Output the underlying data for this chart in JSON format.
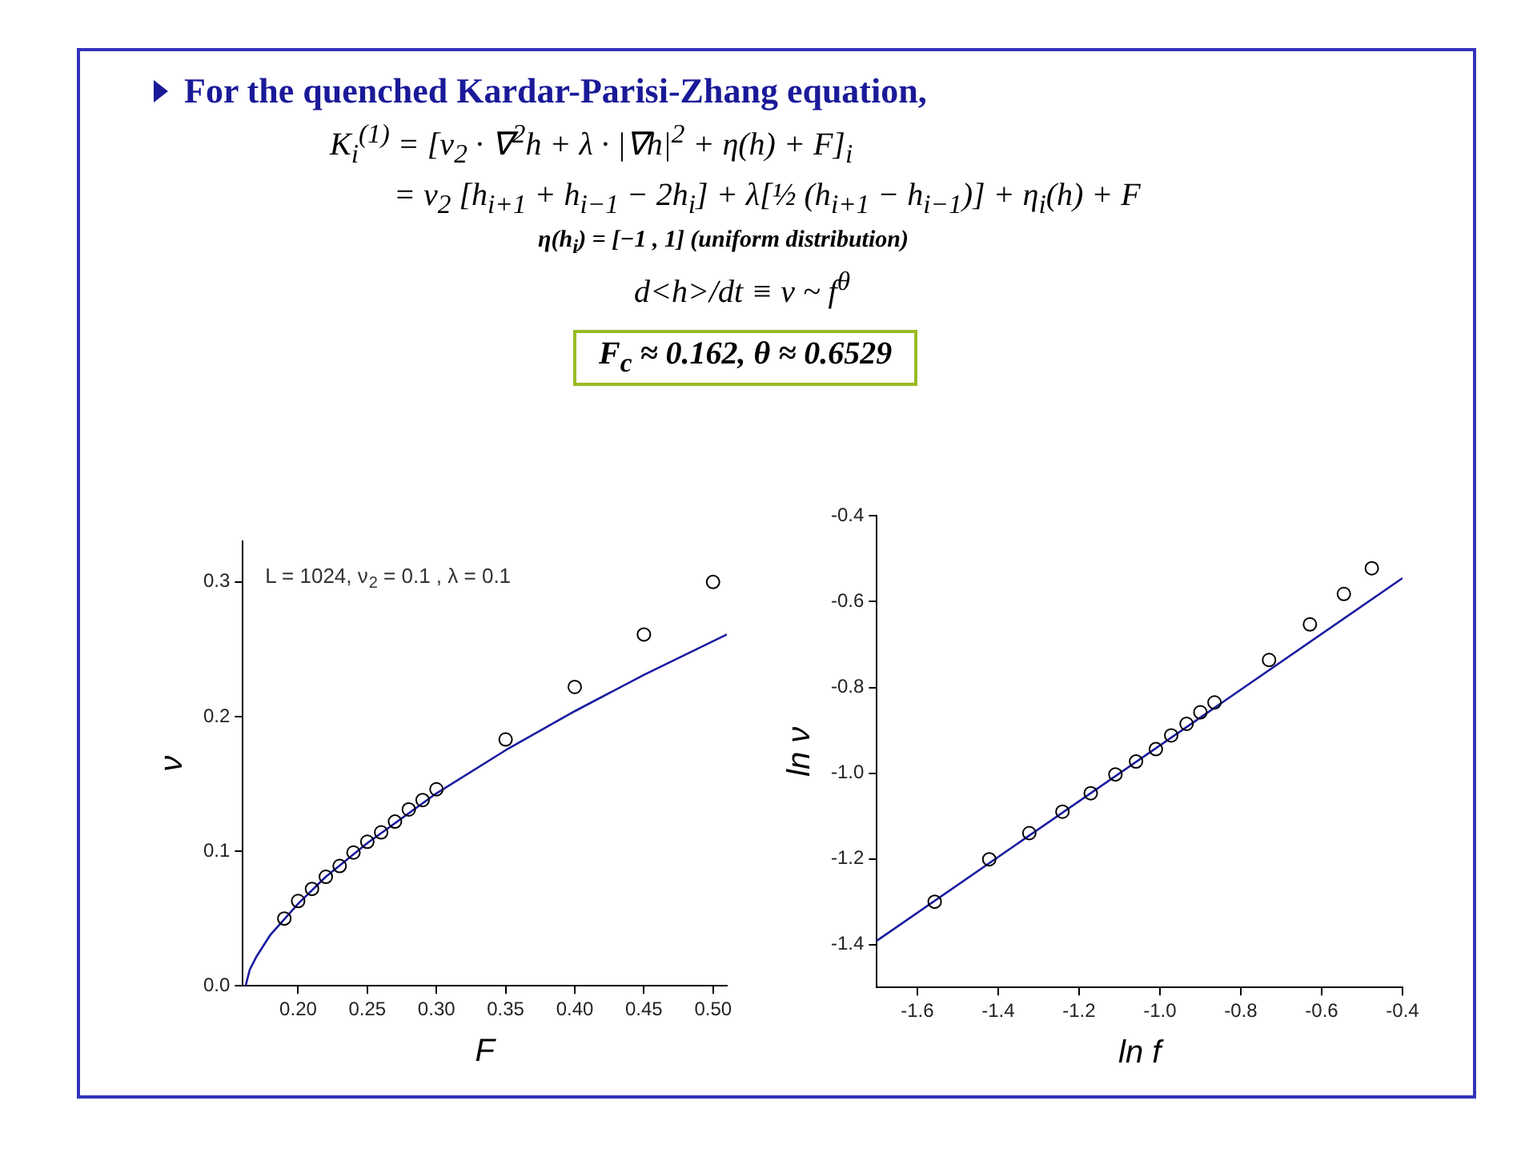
{
  "chart_data": [
    {
      "type": "other",
      "title": "For the quenched Kardar-Parisi-Zhang equation,",
      "annotations": [
        "K$_{i}$$^{(1)}$ = [ν$_{2}$ · ∇$^{2}$h + λ · |∇h|$^{2}$ + η(h) + F]$_{i}$",
        "= ν$_{2}$ [h$_{i+1}$ + h$_{i−1}$ − 2h$_{i}$] + λ[½ (h$_{i+1}$ − h$_{i−1}$)] + η$_{i}$(h) + F",
        "η(h$_{i}$) = [−1 , 1]  (uniform distribution)",
        "d<h>/dt ≡ v ~ f$^{θ}$",
        "F$_{c}$ ≈ 0.162,  θ ≈ 0.6529"
      ]
    },
    {
      "type": "scatter",
      "xlabel": "F",
      "ylabel": "ν",
      "annotations": [
        "L = 1024, ν$_{2}$ = 0.1 , λ = 0.1"
      ],
      "xlim": [
        0.16,
        0.51
      ],
      "ylim": [
        0,
        0.33
      ],
      "xticks": [
        {
          "value": 0.2,
          "label": "0.20"
        },
        0.25,
        {
          "value": 0.3,
          "label": "0.30"
        },
        0.35,
        {
          "value": 0.4,
          "label": "0.40"
        },
        0.45,
        {
          "value": 0.5,
          "label": "0.50"
        }
      ],
      "yticks": [
        {
          "value": 0,
          "label": "0.0"
        },
        0.1,
        0.2,
        0.3
      ],
      "grid": false,
      "legend": false,
      "series": [
        {
          "type": "scatter",
          "marker": "circle",
          "color": "#000000",
          "x": [
            0.19,
            0.2,
            0.21,
            0.22,
            0.23,
            0.24,
            0.25,
            0.26,
            0.27,
            0.28,
            0.29,
            0.3,
            0.35,
            0.4,
            0.45,
            0.5
          ],
          "values": [
            0.05,
            0.063,
            0.072,
            0.081,
            0.089,
            0.099,
            0.107,
            0.114,
            0.122,
            0.131,
            0.138,
            0.146,
            0.183,
            0.222,
            0.261,
            0.3
          ]
        },
        {
          "type": "line",
          "marker": "none",
          "color": "#1a1aa0",
          "x": [
            0.162,
            0.165,
            0.17,
            0.18,
            0.2,
            0.22,
            0.25,
            0.3,
            0.35,
            0.4,
            0.45,
            0.51
          ],
          "values": [
            0,
            0.012,
            0.022,
            0.038,
            0.061,
            0.081,
            0.106,
            0.143,
            0.175,
            0.204,
            0.231,
            0.261
          ]
        }
      ]
    },
    {
      "type": "scatter",
      "xlabel": "ln f",
      "ylabel": "ln ν",
      "xlim": [
        -1.7,
        -0.4
      ],
      "ylim": [
        -1.5,
        -0.4
      ],
      "xticks": [
        -1.6,
        -1.4,
        -1.2,
        {
          "value": -1.0,
          "label": "-1.0"
        },
        -0.8,
        -0.6,
        -0.4
      ],
      "yticks": [
        -1.4,
        -1.2,
        {
          "value": -1.0,
          "label": "-1.0"
        },
        -0.8,
        -0.6,
        -0.4
      ],
      "grid": false,
      "legend": false,
      "series": [
        {
          "type": "scatter",
          "marker": "circle",
          "color": "#000000",
          "x": [
            -1.557,
            -1.422,
            -1.323,
            -1.241,
            -1.171,
            -1.11,
            -1.059,
            -1.01,
            -0.972,
            -0.934,
            -0.9,
            -0.865,
            -0.73,
            -0.629,
            -0.545,
            -0.476
          ],
          "values": [
            -1.3,
            -1.201,
            -1.14,
            -1.09,
            -1.047,
            -1.003,
            -0.973,
            -0.944,
            -0.912,
            -0.885,
            -0.858,
            -0.835,
            -0.736,
            -0.653,
            -0.582,
            -0.522
          ]
        },
        {
          "type": "line",
          "marker": "none",
          "color": "#1a1aa0",
          "x": [
            -1.7,
            -0.4
          ],
          "values": [
            -1.391,
            -0.545
          ]
        }
      ]
    }
  ]
}
